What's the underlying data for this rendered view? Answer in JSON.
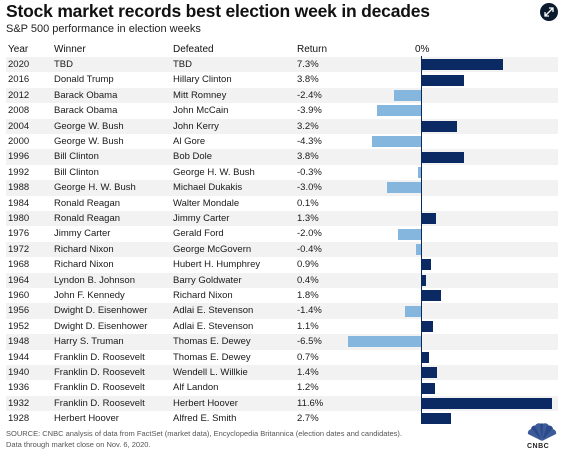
{
  "title": "Stock market records best election week in decades",
  "subtitle": "S&P 500 performance in election weeks",
  "headers": {
    "year": "Year",
    "winner": "Winner",
    "defeated": "Defeated",
    "return": "Return",
    "zero": "0%"
  },
  "colors": {
    "positive": "#0b2a64",
    "negative": "#85b6de"
  },
  "rows": [
    {
      "year": "2020",
      "winner": "TBD",
      "defeated": "TBD",
      "ret": "7.3%"
    },
    {
      "year": "2016",
      "winner": "Donald Trump",
      "defeated": "Hillary Clinton",
      "ret": "3.8%"
    },
    {
      "year": "2012",
      "winner": "Barack Obama",
      "defeated": "Mitt Romney",
      "ret": "-2.4%"
    },
    {
      "year": "2008",
      "winner": "Barack Obama",
      "defeated": "John McCain",
      "ret": "-3.9%"
    },
    {
      "year": "2004",
      "winner": "George W. Bush",
      "defeated": "John Kerry",
      "ret": "3.2%"
    },
    {
      "year": "2000",
      "winner": "George W. Bush",
      "defeated": "Al Gore",
      "ret": "-4.3%"
    },
    {
      "year": "1996",
      "winner": "Bill Clinton",
      "defeated": "Bob Dole",
      "ret": "3.8%"
    },
    {
      "year": "1992",
      "winner": "Bill Clinton",
      "defeated": "George H. W. Bush",
      "ret": "-0.3%"
    },
    {
      "year": "1988",
      "winner": "George H. W. Bush",
      "defeated": "Michael Dukakis",
      "ret": "-3.0%"
    },
    {
      "year": "1984",
      "winner": "Ronald Reagan",
      "defeated": "Walter Mondale",
      "ret": "0.1%"
    },
    {
      "year": "1980",
      "winner": "Ronald Reagan",
      "defeated": "Jimmy Carter",
      "ret": "1.3%"
    },
    {
      "year": "1976",
      "winner": "Jimmy Carter",
      "defeated": "Gerald Ford",
      "ret": "-2.0%"
    },
    {
      "year": "1972",
      "winner": "Richard Nixon",
      "defeated": "George McGovern",
      "ret": "-0.4%"
    },
    {
      "year": "1968",
      "winner": "Richard Nixon",
      "defeated": "Hubert H. Humphrey",
      "ret": "0.9%"
    },
    {
      "year": "1964",
      "winner": "Lyndon B. Johnson",
      "defeated": "Barry Goldwater",
      "ret": "0.4%"
    },
    {
      "year": "1960",
      "winner": "John F. Kennedy",
      "defeated": "Richard Nixon",
      "ret": "1.8%"
    },
    {
      "year": "1956",
      "winner": "Dwight D. Eisenhower",
      "defeated": "Adlai E. Stevenson",
      "ret": "-1.4%"
    },
    {
      "year": "1952",
      "winner": "Dwight D. Eisenhower",
      "defeated": "Adlai E. Stevenson",
      "ret": "1.1%"
    },
    {
      "year": "1948",
      "winner": "Harry S. Truman",
      "defeated": "Thomas E. Dewey",
      "ret": "-6.5%"
    },
    {
      "year": "1944",
      "winner": "Franklin D. Roosevelt",
      "defeated": "Thomas E. Dewey",
      "ret": "0.7%"
    },
    {
      "year": "1940",
      "winner": "Franklin D. Roosevelt",
      "defeated": "Wendell L. Willkie",
      "ret": "1.4%"
    },
    {
      "year": "1936",
      "winner": "Franklin D. Roosevelt",
      "defeated": "Alf Landon",
      "ret": "1.2%"
    },
    {
      "year": "1932",
      "winner": "Franklin D. Roosevelt",
      "defeated": "Herbert Hoover",
      "ret": "11.6%"
    },
    {
      "year": "1928",
      "winner": "Herbert Hoover",
      "defeated": "Alfred E. Smith",
      "ret": "2.7%"
    }
  ],
  "footer": {
    "line1": "SOURCE: CNBC analysis of data from FactSet (market data), Encyclopedia Britannica (election dates and candidates).",
    "line2": "Data through market close on Nov. 6, 2020."
  },
  "logo_text": "CNBC",
  "chart_data": {
    "type": "bar",
    "title": "Stock market records best election week in decades",
    "subtitle": "S&P 500 performance in election weeks",
    "categories": [
      "2020",
      "2016",
      "2012",
      "2008",
      "2004",
      "2000",
      "1996",
      "1992",
      "1988",
      "1984",
      "1980",
      "1976",
      "1972",
      "1968",
      "1964",
      "1960",
      "1956",
      "1952",
      "1948",
      "1944",
      "1940",
      "1936",
      "1932",
      "1928"
    ],
    "values": [
      7.3,
      3.8,
      -2.4,
      -3.9,
      3.2,
      -4.3,
      3.8,
      -0.3,
      -3.0,
      0.1,
      1.3,
      -2.0,
      -0.4,
      0.9,
      0.4,
      1.8,
      -1.4,
      1.1,
      -6.5,
      0.7,
      1.4,
      1.2,
      11.6,
      2.7
    ],
    "orientation": "horizontal",
    "zero_label": "0%"
  }
}
